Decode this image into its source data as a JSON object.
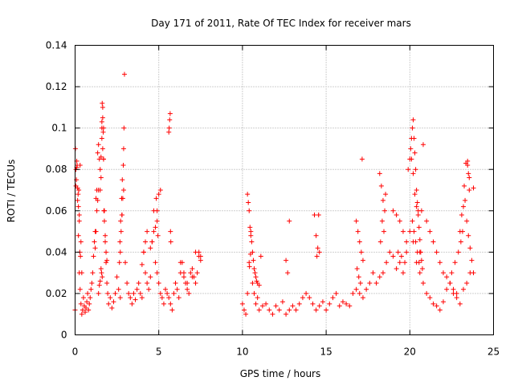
{
  "chart_data": {
    "type": "scatter",
    "title": "Day 171 of 2011, Rate Of TEC Index for receiver mars",
    "xlabel": "GPS time / hours",
    "ylabel": "ROTI / TECUs",
    "xlim": [
      0,
      25
    ],
    "ylim": [
      0,
      0.14
    ],
    "xticks": [
      0,
      5,
      10,
      15,
      20,
      25
    ],
    "yticks": [
      0,
      0.02,
      0.04,
      0.06,
      0.08,
      0.1,
      0.12,
      0.14
    ],
    "xtick_labels": [
      "0",
      "5",
      "10",
      "15",
      "20",
      "25"
    ],
    "ytick_labels": [
      "0",
      "0.02",
      "0.04",
      "0.06",
      "0.08",
      "0.1",
      "0.12",
      "0.14"
    ],
    "grid": true,
    "marker": "+",
    "marker_color": "#ff0000",
    "series": [
      {
        "name": "ROTI",
        "x": [
          0.0,
          0.05,
          0.1,
          0.15,
          0.2,
          0.25,
          0.3,
          0.35,
          0.4,
          0.45,
          0.5,
          0.55,
          0.6,
          0.65,
          0.7,
          0.75,
          0.8,
          0.85,
          0.9,
          0.95,
          1.0,
          1.05,
          1.1,
          1.15,
          1.2,
          1.25,
          1.3,
          1.35,
          1.4,
          1.45,
          1.5,
          1.55,
          1.6,
          1.65,
          1.7,
          1.75,
          1.8,
          1.85,
          1.9,
          1.95,
          2.0,
          2.1,
          2.2,
          2.3,
          2.4,
          2.5,
          2.6,
          2.7,
          2.8,
          2.9,
          3.0,
          3.1,
          3.2,
          3.3,
          3.4,
          3.5,
          3.6,
          3.7,
          3.8,
          3.9,
          4.0,
          4.1,
          4.2,
          4.3,
          4.4,
          4.5,
          4.6,
          4.7,
          4.8,
          4.9,
          5.0,
          5.1,
          5.2,
          5.3,
          5.4,
          5.5,
          5.6,
          5.7,
          5.8,
          5.9,
          6.0,
          6.1,
          6.2,
          6.3,
          6.4,
          6.5,
          6.6,
          6.7,
          6.8,
          6.9,
          7.0,
          7.1,
          7.2,
          7.3,
          7.4,
          7.5,
          0.05,
          0.1,
          0.15,
          0.2,
          0.25,
          0.3,
          0.35,
          0.4,
          0.02,
          0.08,
          0.12,
          0.18,
          0.22,
          0.28,
          0.32,
          0.25,
          1.2,
          1.25,
          1.3,
          1.35,
          1.4,
          1.5,
          1.55,
          1.6,
          1.65,
          1.7,
          1.6,
          1.62,
          1.65,
          1.68,
          1.7,
          1.72,
          1.75,
          1.8,
          1.85,
          1.9,
          1.55,
          1.58,
          1.62,
          1.5,
          1.45,
          1.4,
          2.65,
          2.7,
          2.75,
          2.8,
          2.85,
          2.9,
          2.92,
          2.95,
          2.88,
          2.82,
          2.78,
          2.72,
          2.68,
          4.0,
          4.1,
          4.2,
          4.3,
          4.5,
          4.6,
          4.7,
          4.8,
          4.9,
          5.0,
          5.1,
          4.85,
          4.9,
          4.95,
          5.6,
          5.62,
          5.65,
          5.68,
          5.7,
          5.72,
          6.3,
          6.5,
          6.7,
          7.0,
          7.2,
          7.4,
          7.5,
          10.0,
          10.1,
          10.2,
          10.3,
          10.4,
          10.5,
          10.6,
          10.7,
          10.8,
          10.9,
          11.0,
          11.2,
          11.4,
          11.6,
          11.8,
          12.0,
          12.2,
          12.4,
          12.6,
          12.8,
          13.0,
          13.2,
          13.4,
          13.6,
          13.8,
          14.0,
          14.2,
          14.4,
          14.6,
          14.8,
          15.0,
          15.2,
          15.4,
          15.6,
          15.8,
          16.0,
          16.2,
          16.4,
          16.6,
          16.8,
          17.0,
          17.2,
          17.4,
          17.6,
          17.8,
          18.0,
          18.2,
          18.4,
          18.6,
          18.8,
          19.0,
          19.2,
          19.4,
          19.6,
          19.8,
          20.0,
          20.2,
          20.4,
          20.6,
          20.8,
          21.0,
          21.2,
          21.4,
          21.6,
          21.8,
          22.0,
          22.2,
          22.4,
          22.6,
          22.8,
          23.0,
          23.2,
          23.4,
          23.6,
          23.8,
          10.3,
          10.35,
          10.4,
          10.45,
          10.5,
          10.55,
          10.6,
          10.65,
          10.7,
          10.75,
          10.8,
          10.85,
          10.9,
          11.0,
          11.1,
          10.42,
          10.48,
          12.6,
          12.7,
          12.8,
          14.3,
          14.4,
          14.5,
          14.6,
          14.45,
          14.55,
          16.8,
          16.9,
          17.0,
          17.1,
          17.2,
          16.85,
          16.95,
          17.05,
          17.15,
          18.2,
          18.3,
          18.4,
          18.5,
          18.35,
          18.45,
          18.25,
          18.55,
          19.0,
          19.2,
          19.4,
          19.6,
          19.8,
          19.3,
          19.5,
          19.7,
          19.9,
          20.0,
          20.05,
          20.1,
          20.15,
          20.2,
          20.25,
          20.3,
          20.35,
          20.4,
          20.45,
          20.5,
          20.55,
          20.6,
          20.65,
          20.7,
          20.75,
          20.8,
          20.1,
          20.2,
          20.3,
          20.4,
          20.5,
          20.15,
          20.25,
          20.35,
          20.45,
          20.55,
          20.6,
          20.7,
          21.0,
          21.2,
          21.4,
          21.6,
          21.8,
          22.0,
          22.2,
          22.4,
          22.6,
          22.8,
          23.0,
          23.1,
          23.2,
          23.3,
          23.4,
          23.5,
          23.6,
          23.7,
          23.8,
          23.25,
          23.35,
          23.45,
          23.55,
          23.15,
          23.05,
          22.9,
          22.7,
          22.5,
          23.45,
          23.5,
          23.55
        ],
        "y": [
          0.012,
          0.072,
          0.081,
          0.065,
          0.048,
          0.03,
          0.022,
          0.015,
          0.01,
          0.012,
          0.018,
          0.014,
          0.011,
          0.013,
          0.016,
          0.02,
          0.012,
          0.015,
          0.018,
          0.022,
          0.025,
          0.03,
          0.038,
          0.045,
          0.05,
          0.066,
          0.07,
          0.088,
          0.092,
          0.085,
          0.07,
          0.076,
          0.1,
          0.11,
          0.085,
          0.06,
          0.045,
          0.035,
          0.025,
          0.02,
          0.015,
          0.018,
          0.013,
          0.016,
          0.02,
          0.028,
          0.022,
          0.018,
          0.058,
          0.07,
          0.035,
          0.025,
          0.02,
          0.018,
          0.015,
          0.02,
          0.017,
          0.022,
          0.025,
          0.02,
          0.018,
          0.04,
          0.03,
          0.025,
          0.022,
          0.028,
          0.045,
          0.06,
          0.035,
          0.03,
          0.025,
          0.02,
          0.018,
          0.015,
          0.022,
          0.02,
          0.018,
          0.015,
          0.012,
          0.02,
          0.025,
          0.022,
          0.018,
          0.03,
          0.035,
          0.028,
          0.025,
          0.022,
          0.02,
          0.03,
          0.032,
          0.028,
          0.025,
          0.03,
          0.04,
          0.038,
          0.08,
          0.084,
          0.071,
          0.062,
          0.058,
          0.082,
          0.045,
          0.03,
          0.09,
          0.075,
          0.082,
          0.068,
          0.07,
          0.04,
          0.038,
          0.055,
          0.042,
          0.05,
          0.06,
          0.065,
          0.07,
          0.08,
          0.086,
          0.095,
          0.09,
          0.1,
          0.103,
          0.112,
          0.105,
          0.098,
          0.085,
          0.06,
          0.055,
          0.048,
          0.04,
          0.036,
          0.032,
          0.03,
          0.028,
          0.026,
          0.024,
          0.02,
          0.035,
          0.04,
          0.05,
          0.058,
          0.066,
          0.09,
          0.1,
          0.126,
          0.082,
          0.075,
          0.066,
          0.055,
          0.045,
          0.034,
          0.04,
          0.045,
          0.05,
          0.042,
          0.045,
          0.05,
          0.052,
          0.06,
          0.068,
          0.07,
          0.066,
          0.055,
          0.048,
          0.098,
          0.1,
          0.104,
          0.107,
          0.05,
          0.045,
          0.035,
          0.03,
          0.025,
          0.028,
          0.04,
          0.038,
          0.036,
          0.015,
          0.012,
          0.01,
          0.02,
          0.035,
          0.05,
          0.025,
          0.02,
          0.015,
          0.018,
          0.012,
          0.014,
          0.015,
          0.012,
          0.01,
          0.014,
          0.012,
          0.016,
          0.01,
          0.012,
          0.014,
          0.012,
          0.015,
          0.018,
          0.02,
          0.018,
          0.015,
          0.012,
          0.014,
          0.016,
          0.012,
          0.015,
          0.018,
          0.02,
          0.014,
          0.016,
          0.015,
          0.014,
          0.02,
          0.022,
          0.02,
          0.018,
          0.022,
          0.025,
          0.03,
          0.025,
          0.028,
          0.03,
          0.035,
          0.04,
          0.038,
          0.032,
          0.035,
          0.03,
          0.04,
          0.05,
          0.045,
          0.035,
          0.04,
          0.025,
          0.02,
          0.018,
          0.015,
          0.014,
          0.012,
          0.016,
          0.022,
          0.025,
          0.02,
          0.018,
          0.015,
          0.022,
          0.025,
          0.03,
          0.071,
          0.068,
          0.064,
          0.06,
          0.052,
          0.048,
          0.045,
          0.04,
          0.036,
          0.032,
          0.03,
          0.028,
          0.026,
          0.025,
          0.024,
          0.038,
          0.033,
          0.039,
          0.036,
          0.03,
          0.055,
          0.058,
          0.048,
          0.042,
          0.04,
          0.038,
          0.058,
          0.055,
          0.05,
          0.045,
          0.04,
          0.036,
          0.032,
          0.028,
          0.025,
          0.085,
          0.078,
          0.072,
          0.065,
          0.06,
          0.055,
          0.05,
          0.045,
          0.068,
          0.06,
          0.058,
          0.055,
          0.05,
          0.045,
          0.04,
          0.038,
          0.035,
          0.08,
          0.085,
          0.09,
          0.095,
          0.1,
          0.104,
          0.095,
          0.088,
          0.08,
          0.07,
          0.064,
          0.058,
          0.052,
          0.046,
          0.04,
          0.036,
          0.032,
          0.092,
          0.085,
          0.078,
          0.068,
          0.062,
          0.06,
          0.055,
          0.05,
          0.045,
          0.04,
          0.035,
          0.03,
          0.06,
          0.055,
          0.05,
          0.045,
          0.04,
          0.035,
          0.03,
          0.028,
          0.025,
          0.022,
          0.02,
          0.05,
          0.058,
          0.062,
          0.065,
          0.055,
          0.048,
          0.042,
          0.036,
          0.03,
          0.072,
          0.083,
          0.084,
          0.076,
          0.05,
          0.045,
          0.04,
          0.035,
          0.03,
          0.082,
          0.078,
          0.07
        ]
      }
    ]
  }
}
